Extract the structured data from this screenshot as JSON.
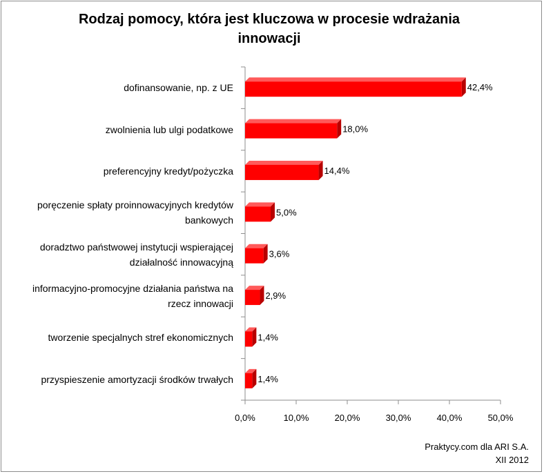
{
  "chart_data": {
    "type": "bar",
    "orientation": "horizontal",
    "title": "Rodzaj pomocy, która jest kluczowa w procesie wdrażania\ninnowacji",
    "categories": [
      "dofinansowanie, np. z UE",
      "zwolnienia lub ulgi podatkowe",
      "preferencyjny kredyt/pożyczka",
      "poręczenie spłaty proinnowacyjnych kredytów bankowych",
      "doradztwo państwowej instytucji wspierającej działalność innowacyjną",
      "informacyjno-promocyjne działania państwa na rzecz innowacji",
      "tworzenie specjalnych stref ekonomicznych",
      "przyspieszenie amortyzacji środków trwałych"
    ],
    "category_lines": [
      [
        "dofinansowanie, np. z UE"
      ],
      [
        "zwolnienia lub ulgi podatkowe"
      ],
      [
        "preferencyjny kredyt/pożyczka"
      ],
      [
        "poręczenie spłaty proinnowacyjnych kredytów",
        "bankowych"
      ],
      [
        "doradztwo państwowej instytucji wspierającej",
        "działalność innowacyjną"
      ],
      [
        "informacyjno-promocyjne działania państwa na",
        "rzecz innowacji"
      ],
      [
        "tworzenie specjalnych stref ekonomicznych"
      ],
      [
        "przyspieszenie amortyzacji środków trwałych"
      ]
    ],
    "values": [
      42.4,
      18.0,
      14.4,
      5.0,
      3.6,
      2.9,
      1.4,
      1.4
    ],
    "value_labels": [
      "42,4%",
      "18,0%",
      "14,4%",
      "5,0%",
      "3,6%",
      "2,9%",
      "1,4%",
      "1,4%"
    ],
    "xlim": [
      0,
      50
    ],
    "xticks": [
      "0,0%",
      "10,0%",
      "20,0%",
      "30,0%",
      "40,0%",
      "50,0%"
    ],
    "xlabel": "",
    "ylabel": "",
    "grid": false,
    "bar_style": "3d",
    "colors": {
      "bar_front": "#ff0000",
      "bar_top": "#ff5a5a",
      "bar_side": "#b80000",
      "axis": "#8c8c8c"
    }
  },
  "footer": {
    "line1": "Praktycy.com dla ARI S.A.",
    "line2": "XII 2012"
  }
}
